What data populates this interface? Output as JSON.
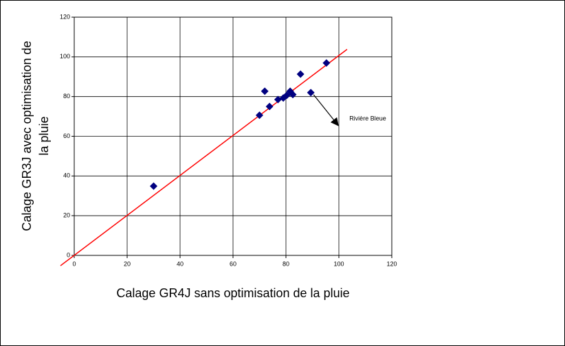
{
  "chart_data": {
    "type": "scatter",
    "xlabel": "Calage GR4J sans optimisation de la pluie",
    "ylabel": [
      "Calage GR3J avec optimisation de",
      "la pluie"
    ],
    "xlim": [
      0,
      120
    ],
    "ylim": [
      0,
      120
    ],
    "xticks": [
      0,
      20,
      40,
      60,
      80,
      100,
      120
    ],
    "yticks": [
      0,
      20,
      40,
      60,
      80,
      100,
      120
    ],
    "grid": true,
    "series": [
      {
        "color": "#000080",
        "x": [
          30,
          70,
          72,
          73.8,
          77,
          79,
          80.3,
          81.6,
          82.6,
          85.5,
          89.4,
          95.3
        ],
        "values": [
          34.9,
          70.6,
          82.7,
          75,
          78.5,
          79.3,
          80.6,
          82.7,
          81,
          91.3,
          82,
          96.9
        ]
      }
    ],
    "trend_line": {
      "color": "#ff0000",
      "x": [
        -5.2,
        103.1
      ],
      "y": [
        -5.2,
        103.8
      ]
    },
    "annotation": {
      "text": "Rivière Bleue"
    }
  }
}
